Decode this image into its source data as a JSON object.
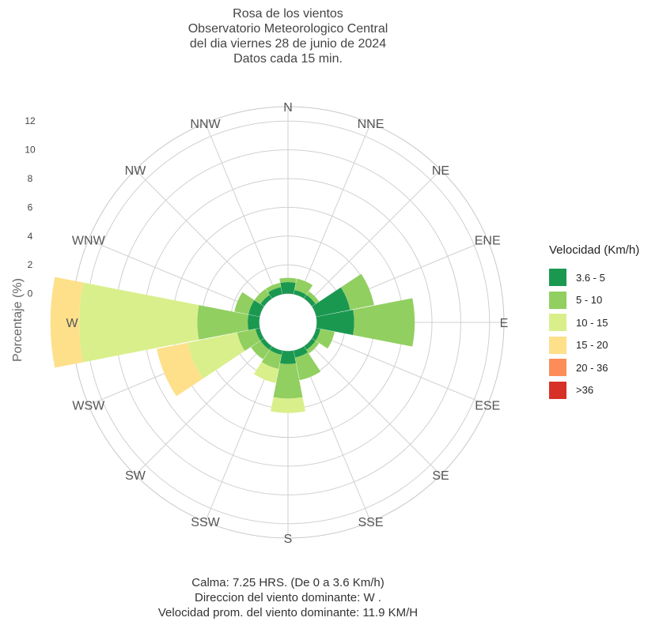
{
  "title_lines": [
    "Rosa de los vientos",
    "Observatorio Meteorologico Central",
    "del dia viernes 28 de junio de 2024",
    "Datos cada 15 min."
  ],
  "footer_lines": [
    "Calma:  7.25 HRS. (De 0 a 3.6 Km/h)",
    "Direccion del viento dominante:  W .",
    "Velocidad prom. del viento dominante:  11.9 KM/H"
  ],
  "legend": {
    "title": "Velocidad (Km/h)",
    "items": [
      {
        "label": "3.6 - 5",
        "color": "#1a9850"
      },
      {
        "label": "5 - 10",
        "color": "#91cf60"
      },
      {
        "label": "10 - 15",
        "color": "#d9ef8b"
      },
      {
        "label": "15 - 20",
        "color": "#fee08b"
      },
      {
        "label": "20 - 36",
        "color": "#fc8d59"
      },
      {
        "label": ">36",
        "color": "#d73027"
      }
    ]
  },
  "chart_data": {
    "type": "wind_rose",
    "ylabel": "Porcentaje (%)",
    "radial_ticks": [
      0,
      2,
      4,
      6,
      8,
      10,
      12
    ],
    "radial_range": [
      -2,
      13
    ],
    "directions": [
      "N",
      "NNE",
      "NE",
      "ENE",
      "E",
      "ESE",
      "SE",
      "SSE",
      "S",
      "SSW",
      "SW",
      "WSW",
      "W",
      "WNW",
      "NW",
      "NNW"
    ],
    "series": [
      {
        "name": "3.6 - 5",
        "values": [
          0.8,
          0.3,
          0.3,
          2.4,
          2.6,
          0.3,
          0.3,
          0.5,
          0.9,
          0.3,
          0.3,
          0.3,
          0.8,
          0.8,
          0.3,
          0.5
        ]
      },
      {
        "name": "5 - 10",
        "values": [
          0.3,
          0.8,
          0.3,
          1.7,
          4.2,
          1.0,
          0.3,
          1.6,
          2.4,
          1.0,
          0.8,
          1.3,
          3.5,
          1.0,
          0.5,
          0.3
        ]
      },
      {
        "name": "10 - 15",
        "values": [
          0,
          0,
          0,
          0,
          0,
          0,
          0,
          0,
          1.0,
          1.0,
          0,
          3.5,
          8.2,
          0,
          0,
          0
        ]
      },
      {
        "name": "15 - 20",
        "values": [
          0,
          0,
          0,
          0,
          0,
          0,
          0,
          0,
          0,
          0,
          0,
          2.2,
          2.0,
          0,
          0,
          0
        ]
      },
      {
        "name": "20 - 36",
        "values": [
          0,
          0,
          0,
          0,
          0,
          0,
          0,
          0,
          0,
          0,
          0,
          0,
          0,
          0,
          0,
          0
        ]
      },
      {
        "name": ">36",
        "values": [
          0,
          0,
          0,
          0,
          0,
          0,
          0,
          0,
          0,
          0,
          0,
          0,
          0,
          0,
          0,
          0
        ]
      }
    ],
    "grid": true,
    "legend_position": "right"
  }
}
